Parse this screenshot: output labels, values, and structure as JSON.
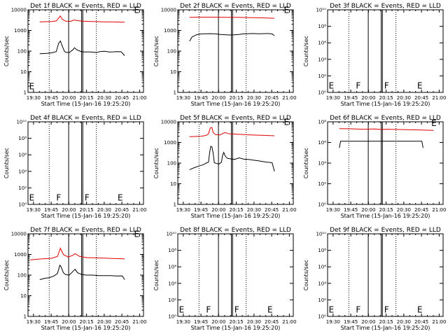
{
  "colors": {
    "events": "#000000",
    "lld": "#e00000",
    "frame": "#000000",
    "background": "#ffffff"
  },
  "common": {
    "xlabel": "Start Time (15-Jan-16 19:25:20)",
    "ylabel": "Counts/sec",
    "xticks": [
      "19:30",
      "19:45",
      "20:00",
      "20:15",
      "20:30",
      "20:45",
      "21:00"
    ],
    "xlim_min": [
      0,
      98
    ]
  },
  "chart_data": [
    {
      "type": "line",
      "title": "Det 1f BLACK = Events, RED = LLD",
      "log_y": true,
      "ylim": [
        1,
        10000
      ],
      "yticks": [
        "1",
        "10",
        "100",
        "1000",
        "10000"
      ],
      "solid_lines_min": [
        34.5,
        45.5,
        46.5
      ],
      "dotted_lines_min": [
        18,
        58
      ],
      "markers": [
        {
          "text": "E",
          "x": 1,
          "y": 1.4
        },
        {
          "text": "E",
          "x": 90,
          "y": 7000
        }
      ],
      "series": [
        {
          "role": "events",
          "x": [
            10,
            16,
            20,
            24,
            26,
            27.5,
            29,
            31,
            32,
            35,
            38,
            39.5,
            41,
            45,
            48,
            52,
            56,
            58,
            61,
            65,
            69,
            72,
            75,
            79,
            82
          ],
          "y": [
            75,
            78,
            82,
            95,
            240,
            310,
            180,
            95,
            88,
            85,
            115,
            145,
            120,
            95,
            90,
            92,
            88,
            85,
            95,
            98,
            90,
            92,
            95,
            93,
            60
          ]
        },
        {
          "role": "lld",
          "x": [
            10,
            20,
            24,
            26,
            27.5,
            29,
            32,
            36,
            39,
            42,
            46,
            50,
            55,
            60,
            65,
            70,
            76,
            82
          ],
          "y": [
            2600,
            2700,
            2900,
            4000,
            5000,
            3500,
            2800,
            2750,
            3200,
            3000,
            2800,
            2750,
            2700,
            2650,
            2600,
            2600,
            2550,
            2500
          ]
        }
      ]
    },
    {
      "type": "line",
      "title": "Det 2f BLACK = Events, RED = LLD",
      "log_y": true,
      "ylim": [
        1,
        10000
      ],
      "yticks": [
        "1",
        "10",
        "100",
        "1000",
        "10000"
      ],
      "solid_lines_min": [
        34.5,
        45.5,
        46.5
      ],
      "dotted_lines_min": [
        18,
        58
      ],
      "markers": [
        {
          "text": "E",
          "x": 90,
          "y": 7000
        }
      ],
      "series": [
        {
          "role": "events",
          "x": [
            10,
            12,
            16,
            20,
            24,
            28,
            32,
            36,
            40,
            44,
            48,
            52,
            56,
            60,
            64,
            68,
            72,
            76,
            80,
            82
          ],
          "y": [
            300,
            480,
            620,
            680,
            690,
            700,
            680,
            640,
            620,
            600,
            610,
            640,
            690,
            700,
            710,
            690,
            700,
            710,
            680,
            550
          ]
        },
        {
          "role": "lld",
          "x": [
            10,
            20,
            30,
            40,
            50,
            60,
            70,
            82
          ],
          "y": [
            4300,
            4400,
            4400,
            4350,
            4300,
            4200,
            4100,
            3900
          ]
        }
      ]
    },
    {
      "type": "line",
      "title": "Det 3f BLACK = Events, RED = LLD",
      "log_y": true,
      "ylim": [
        1,
        10000000000
      ],
      "yticks": [
        "10⁰",
        "10²",
        "10⁴",
        "10⁶",
        "10⁸",
        "10¹⁰"
      ],
      "solid_lines_min": [
        34.5,
        45.5,
        46.5
      ],
      "dotted_lines_min": [
        18,
        58
      ],
      "markers": [
        {
          "text": "E",
          "x": 1,
          "y": 3
        },
        {
          "text": "F",
          "x": 24,
          "y": 3
        },
        {
          "text": "F",
          "x": 48,
          "y": 3
        },
        {
          "text": "E",
          "x": 76,
          "y": 3
        }
      ],
      "series": []
    },
    {
      "type": "line",
      "title": "Det 4f BLACK = Events, RED = LLD",
      "log_y": true,
      "ylim": [
        1,
        10000000000
      ],
      "yticks": [
        "10⁰",
        "10²",
        "10⁴",
        "10⁶",
        "10⁸",
        "10¹⁰"
      ],
      "solid_lines_min": [
        34.5,
        45.5,
        46.5
      ],
      "dotted_lines_min": [
        18,
        58
      ],
      "markers": [
        {
          "text": "E",
          "x": 1,
          "y": 3
        },
        {
          "text": "F",
          "x": 24,
          "y": 3
        },
        {
          "text": "F",
          "x": 48,
          "y": 3
        },
        {
          "text": "E",
          "x": 76,
          "y": 3
        }
      ],
      "series": []
    },
    {
      "type": "line",
      "title": "Det 5f BLACK = Events, RED = LLD",
      "log_y": true,
      "ylim": [
        1,
        10000
      ],
      "yticks": [
        "1",
        "10",
        "100",
        "1000",
        "10000"
      ],
      "solid_lines_min": [
        34.5,
        45.5,
        46.5
      ],
      "dotted_lines_min": [
        18,
        58
      ],
      "markers": [
        {
          "text": "E",
          "x": 90,
          "y": 7000
        }
      ],
      "series": [
        {
          "role": "events",
          "x": [
            10,
            14,
            18,
            22,
            24,
            26,
            27,
            28,
            29,
            30,
            31,
            33,
            35,
            37,
            38,
            39,
            40,
            42,
            45,
            48,
            52,
            56,
            60,
            64,
            68,
            72,
            76,
            80,
            82
          ],
          "y": [
            48,
            60,
            72,
            85,
            100,
            110,
            320,
            650,
            600,
            300,
            105,
            95,
            90,
            110,
            240,
            330,
            230,
            170,
            160,
            150,
            180,
            155,
            150,
            140,
            130,
            120,
            110,
            105,
            40
          ]
        },
        {
          "role": "lld",
          "x": [
            10,
            20,
            24,
            26,
            27.5,
            29,
            30,
            32,
            36,
            38,
            40,
            44,
            50,
            56,
            62,
            68,
            74,
            82
          ],
          "y": [
            1900,
            2000,
            2200,
            2600,
            5000,
            5300,
            3000,
            2400,
            2300,
            2700,
            3000,
            2600,
            2500,
            2400,
            2300,
            2250,
            2200,
            2100
          ]
        }
      ]
    },
    {
      "type": "line",
      "title": "Det 6f BLACK = Events, RED = LLD",
      "log_y": true,
      "ylim": [
        1,
        100000000
      ],
      "yticks": [
        "10⁰",
        "10²",
        "10⁴",
        "10⁶",
        "10⁸"
      ],
      "solid_lines_min": [
        34.5,
        45.5,
        46.5
      ],
      "dotted_lines_min": [
        18,
        58
      ],
      "markers": [
        {
          "text": "E",
          "x": 88,
          "y": 40000000
        }
      ],
      "series": [
        {
          "role": "events",
          "x": [
            10,
            11,
            30,
            46,
            62,
            80,
            81
          ],
          "y": [
            300000,
            1300000,
            1320000,
            1310000,
            1300000,
            1320000,
            300000
          ]
        },
        {
          "role": "lld",
          "x": [
            10,
            20,
            30,
            40,
            46,
            50,
            60,
            70,
            80,
            90
          ],
          "y": [
            22000000,
            21000000,
            19000000,
            20000000,
            18000000,
            19000000,
            18000000,
            17000000,
            16000000,
            15000000
          ]
        }
      ]
    },
    {
      "type": "line",
      "title": "Det 7f BLACK = Events, RED = LLD",
      "log_y": true,
      "ylim": [
        1,
        10000
      ],
      "yticks": [
        "1",
        "10",
        "100",
        "1000",
        "10000"
      ],
      "solid_lines_min": [
        34.5,
        45.5,
        46.5
      ],
      "dotted_lines_min": [
        18,
        58
      ],
      "markers": [
        {
          "text": "E",
          "x": 90,
          "y": 7000
        }
      ],
      "series": [
        {
          "role": "events",
          "x": [
            10,
            14,
            18,
            22,
            25,
            27,
            28,
            30,
            32,
            35,
            38,
            40,
            42,
            46,
            50,
            55,
            60,
            65,
            70,
            75,
            80,
            82
          ],
          "y": [
            60,
            70,
            75,
            90,
            120,
            300,
            260,
            130,
            105,
            100,
            150,
            190,
            130,
            105,
            100,
            100,
            95,
            95,
            95,
            90,
            92,
            60
          ]
        },
        {
          "role": "lld",
          "x": [
            2,
            10,
            20,
            25,
            27.5,
            30,
            34,
            38,
            40,
            44,
            50,
            58,
            65,
            72,
            80,
            82
          ],
          "y": [
            550,
            600,
            650,
            800,
            2000,
            1000,
            750,
            900,
            1100,
            800,
            700,
            680,
            660,
            640,
            620,
            600
          ]
        }
      ]
    },
    {
      "type": "line",
      "title": "Det 8f BLACK = Events, RED = LLD",
      "log_y": true,
      "ylim": [
        1,
        10000000000
      ],
      "yticks": [
        "10⁰",
        "10²",
        "10⁴",
        "10⁶",
        "10⁸",
        "10¹⁰"
      ],
      "solid_lines_min": [
        34.5,
        45.5,
        46.5
      ],
      "dotted_lines_min": [
        18,
        58
      ],
      "markers": [
        {
          "text": "E",
          "x": 1,
          "y": 3
        },
        {
          "text": "F",
          "x": 24,
          "y": 3
        },
        {
          "text": "F",
          "x": 48,
          "y": 3
        },
        {
          "text": "E",
          "x": 76,
          "y": 3
        }
      ],
      "series": []
    },
    {
      "type": "line",
      "title": "Det 9f BLACK = Events, RED = LLD",
      "log_y": true,
      "ylim": [
        1,
        10000000000
      ],
      "yticks": [
        "10⁰",
        "10²",
        "10⁴",
        "10⁶",
        "10⁸",
        "10¹⁰"
      ],
      "solid_lines_min": [
        34.5,
        45.5,
        46.5
      ],
      "dotted_lines_min": [
        18,
        58
      ],
      "markers": [
        {
          "text": "E",
          "x": 1,
          "y": 3
        },
        {
          "text": "F",
          "x": 24,
          "y": 3
        },
        {
          "text": "F",
          "x": 48,
          "y": 3
        },
        {
          "text": "E",
          "x": 76,
          "y": 3
        }
      ],
      "series": []
    }
  ]
}
